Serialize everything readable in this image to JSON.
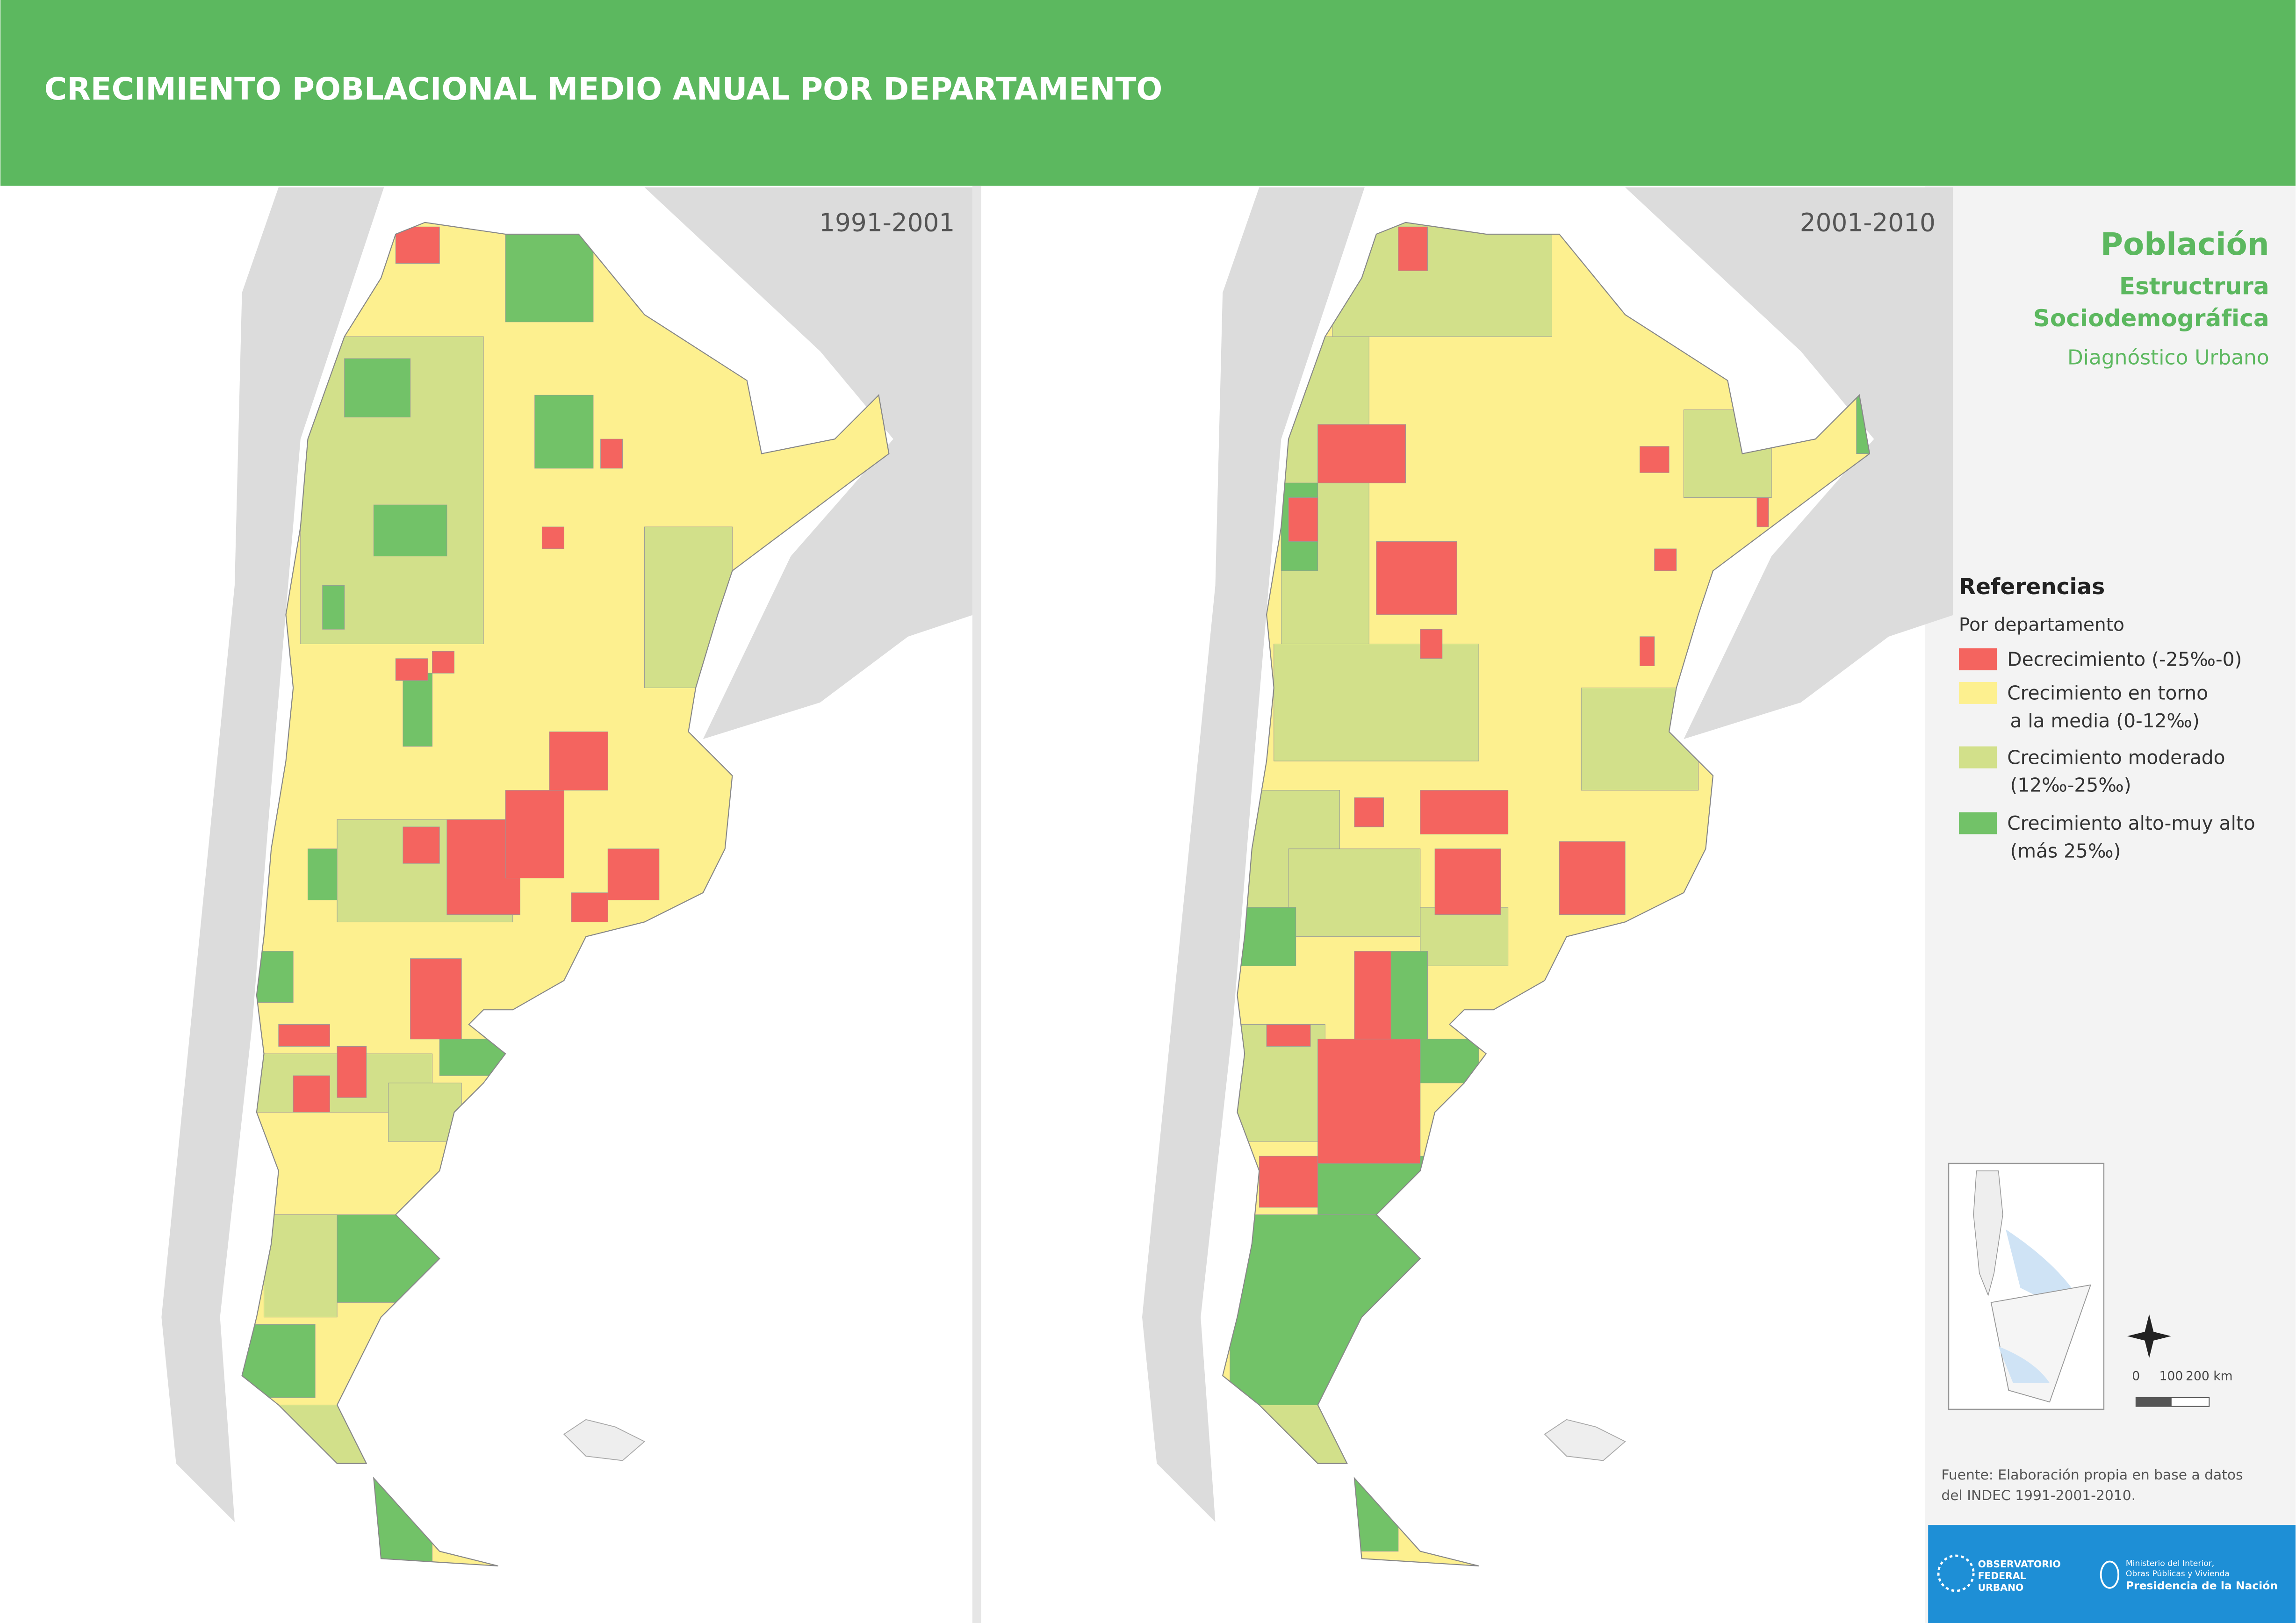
{
  "header": {
    "title": "CRECIMIENTO POBLACIONAL MEDIO ANUAL POR DEPARTAMENTO"
  },
  "maps": [
    {
      "period": "1991-2001"
    },
    {
      "period": "2001-2010"
    }
  ],
  "sidebar": {
    "topic": "Población",
    "section": [
      "Estructrura",
      "Sociodemográfica"
    ],
    "subsection": "Diagnóstico Urbano"
  },
  "legend": {
    "title": "Referencias",
    "subtitle": "Por departamento",
    "items": [
      {
        "lines": [
          "Decrecimiento (-25‰-0)"
        ],
        "color": "#f4645f"
      },
      {
        "lines": [
          "Crecimiento en torno",
          "a la media (0-12‰)"
        ],
        "color": "#fdf08f"
      },
      {
        "lines": [
          "Crecimiento moderado",
          "(12‰-25‰)"
        ],
        "color": "#d2e08a"
      },
      {
        "lines": [
          "Crecimiento alto-muy alto",
          "(más 25‰)"
        ],
        "color": "#72c268"
      }
    ]
  },
  "scale": {
    "labels": [
      "0",
      "100",
      "200 km"
    ]
  },
  "source": [
    "Fuente: Elaboración propia en base a datos",
    "del INDEC  1991-2001-2010."
  ],
  "logos": {
    "left": [
      "OBSERVATORIO",
      "FEDERAL",
      "URBANO"
    ],
    "right": [
      "Ministerio del Interior,",
      "Obras Públicas y Vivienda",
      "Presidencia de la Nación"
    ]
  }
}
